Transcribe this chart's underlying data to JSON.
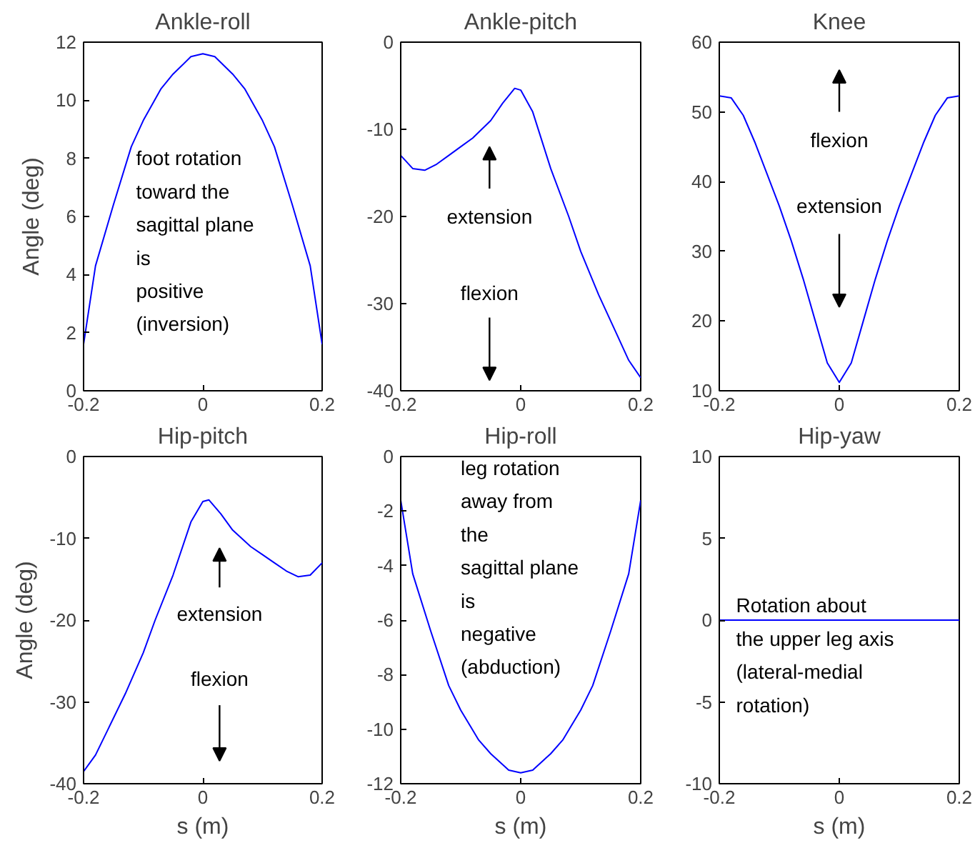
{
  "chart_data": [
    {
      "type": "line",
      "title": "Ankle-roll",
      "ylabel": "Angle (deg)",
      "xlim": [
        -0.2,
        0.2
      ],
      "xticks": [
        -0.2,
        0,
        0.2
      ],
      "ylim": [
        0,
        12
      ],
      "yticks": [
        0,
        2,
        4,
        6,
        8,
        10,
        12
      ],
      "grid": false,
      "tick_labels": true,
      "x": [
        -0.2,
        -0.18,
        -0.15,
        -0.12,
        -0.1,
        -0.07,
        -0.05,
        -0.02,
        0,
        0.02,
        0.05,
        0.07,
        0.1,
        0.12,
        0.15,
        0.18,
        0.2
      ],
      "series": [
        {
          "color": "#0000ff",
          "values": [
            1.6,
            4.3,
            6.4,
            8.4,
            9.3,
            10.4,
            10.9,
            11.5,
            11.6,
            11.5,
            10.9,
            10.4,
            9.3,
            8.4,
            6.4,
            4.3,
            1.6
          ]
        }
      ],
      "annotations": [
        "foot rotation\ntoward the\nsagittal plane\nis\npositive\n(inversion)"
      ]
    },
    {
      "type": "line",
      "title": "Ankle-pitch",
      "xlim": [
        -0.2,
        0.2
      ],
      "xticks": [
        -0.2,
        0,
        0.2
      ],
      "ylim": [
        -40,
        0
      ],
      "yticks": [
        -40,
        -30,
        -20,
        -10,
        0
      ],
      "grid": false,
      "x": [
        -0.2,
        -0.18,
        -0.16,
        -0.14,
        -0.12,
        -0.1,
        -0.08,
        -0.05,
        -0.03,
        -0.01,
        0,
        0.02,
        0.05,
        0.08,
        0.1,
        0.13,
        0.16,
        0.18,
        0.2
      ],
      "series": [
        {
          "color": "#0000ff",
          "values": [
            -13,
            -14.5,
            -14.7,
            -14,
            -13,
            -12,
            -11,
            -9,
            -7,
            -5.3,
            -5.5,
            -8,
            -14.5,
            -20,
            -24,
            -29,
            -33.5,
            -36.5,
            -38.5
          ]
        }
      ],
      "annotations": [
        "extension",
        "flexion"
      ]
    },
    {
      "type": "line",
      "title": "Knee",
      "xlim": [
        -0.2,
        0.2
      ],
      "xticks": [
        -0.2,
        0,
        0.2
      ],
      "ylim": [
        10,
        60
      ],
      "yticks": [
        10,
        20,
        30,
        40,
        50,
        60
      ],
      "grid": false,
      "x": [
        -0.2,
        -0.18,
        -0.16,
        -0.14,
        -0.12,
        -0.1,
        -0.08,
        -0.06,
        -0.04,
        -0.02,
        0,
        0.02,
        0.04,
        0.06,
        0.08,
        0.1,
        0.12,
        0.14,
        0.16,
        0.18,
        0.2
      ],
      "series": [
        {
          "color": "#0000ff",
          "values": [
            52.3,
            52,
            49.5,
            45.5,
            41,
            36.5,
            31.5,
            26,
            20,
            14,
            11.2,
            14,
            20,
            26,
            31.5,
            36.5,
            41,
            45.5,
            49.5,
            52,
            52.3
          ]
        }
      ],
      "annotations": [
        "flexion",
        "extension"
      ]
    },
    {
      "type": "line",
      "title": "Hip-pitch",
      "ylabel": "Angle (deg)",
      "xlabel": "s (m)",
      "xlim": [
        -0.2,
        0.2
      ],
      "xticks": [
        -0.2,
        0,
        0.2
      ],
      "ylim": [
        -40,
        0
      ],
      "yticks": [
        -40,
        -30,
        -20,
        -10,
        0
      ],
      "grid": false,
      "x": [
        -0.2,
        -0.18,
        -0.16,
        -0.13,
        -0.1,
        -0.08,
        -0.05,
        -0.02,
        0,
        0.01,
        0.03,
        0.05,
        0.08,
        0.1,
        0.12,
        0.14,
        0.16,
        0.18,
        0.2
      ],
      "series": [
        {
          "color": "#0000ff",
          "values": [
            -38.5,
            -36.5,
            -33.5,
            -29,
            -24,
            -20,
            -14.5,
            -8,
            -5.5,
            -5.3,
            -7,
            -9,
            -11,
            -12,
            -13,
            -14,
            -14.7,
            -14.5,
            -13
          ]
        }
      ],
      "annotations": [
        "extension",
        "flexion"
      ]
    },
    {
      "type": "line",
      "title": "Hip-roll",
      "xlabel": "s (m)",
      "xlim": [
        -0.2,
        0.2
      ],
      "xticks": [
        -0.2,
        0,
        0.2
      ],
      "ylim": [
        -12,
        0
      ],
      "yticks": [
        -12,
        -10,
        -8,
        -6,
        -4,
        -2,
        0
      ],
      "grid": false,
      "x": [
        -0.2,
        -0.18,
        -0.15,
        -0.12,
        -0.1,
        -0.07,
        -0.05,
        -0.02,
        0,
        0.02,
        0.05,
        0.07,
        0.1,
        0.12,
        0.15,
        0.18,
        0.2
      ],
      "series": [
        {
          "color": "#0000ff",
          "values": [
            -1.6,
            -4.3,
            -6.4,
            -8.4,
            -9.3,
            -10.4,
            -10.9,
            -11.5,
            -11.6,
            -11.5,
            -10.9,
            -10.4,
            -9.3,
            -8.4,
            -6.4,
            -4.3,
            -1.6
          ]
        }
      ],
      "annotations": [
        "leg rotation\naway from\nthe\nsagittal plane\nis\nnegative\n(abduction)"
      ]
    },
    {
      "type": "line",
      "title": "Hip-yaw",
      "xlabel": "s (m)",
      "xlim": [
        -0.2,
        0.2
      ],
      "xticks": [
        -0.2,
        0,
        0.2
      ],
      "ylim": [
        -10,
        10
      ],
      "yticks": [
        -10,
        -5,
        0,
        5,
        10
      ],
      "grid": false,
      "x": [
        -0.2,
        -0.1,
        0,
        0.1,
        0.2
      ],
      "series": [
        {
          "color": "#0000ff",
          "values": [
            0,
            0,
            0,
            0,
            0
          ]
        }
      ],
      "annotations": [
        "Rotation about\nthe upper leg axis\n(lateral-medial\nrotation)"
      ]
    }
  ]
}
